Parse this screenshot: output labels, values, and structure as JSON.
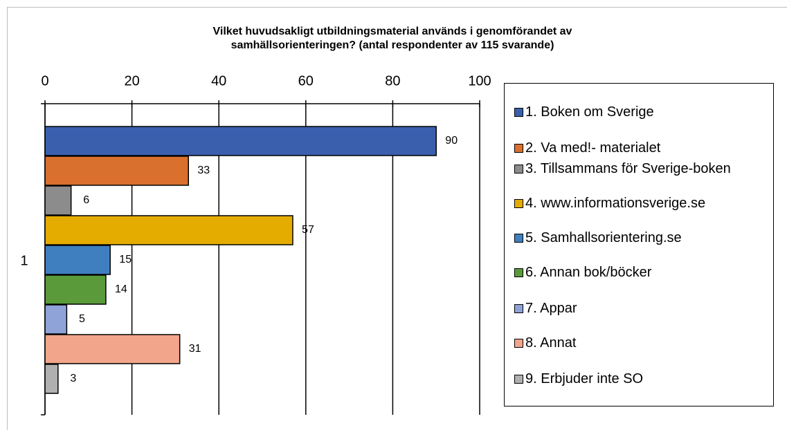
{
  "chart_data": {
    "type": "bar",
    "orientation": "horizontal",
    "title": "Vilket huvudsakligt utbildningsmaterial används i genomförandet av samhällsorienteringen? (antal respondenter av 115 svarande)",
    "categories": [
      "1"
    ],
    "series": [
      {
        "name": "1. Boken om Sverige",
        "color": "#3a5fad",
        "values": [
          90
        ]
      },
      {
        "name": "2. Va med!- materialet",
        "color": "#d9702e",
        "values": [
          33
        ]
      },
      {
        "name": "3. Tillsammans för Sverige-boken",
        "color": "#8c8c8c",
        "values": [
          6
        ]
      },
      {
        "name": "4. www.informationsverige.se",
        "color": "#e5ac00",
        "values": [
          57
        ]
      },
      {
        "name": "5. Samhallsorientering.se",
        "color": "#3f7fbf",
        "values": [
          15
        ]
      },
      {
        "name": "6. Annan bok/böcker",
        "color": "#5a9a3a",
        "values": [
          14
        ]
      },
      {
        "name": "7. Appar",
        "color": "#8fa3d8",
        "values": [
          5
        ]
      },
      {
        "name": "8. Annat",
        "color": "#f2a58a",
        "values": [
          31
        ]
      },
      {
        "name": "9. Erbjuder inte SO",
        "color": "#b0b0b0",
        "values": [
          3
        ]
      }
    ],
    "xlim": [
      0,
      100
    ],
    "xticks": [
      0,
      20,
      40,
      60,
      80,
      100
    ],
    "grid": true
  }
}
